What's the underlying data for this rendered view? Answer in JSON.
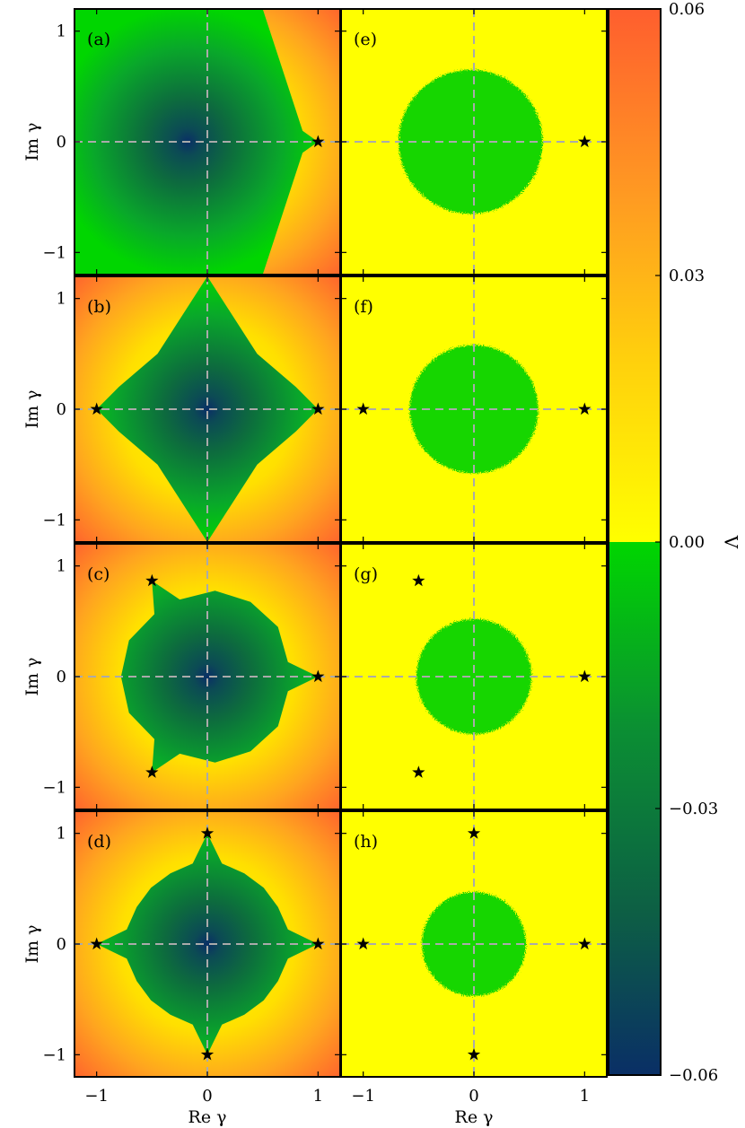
{
  "chart_data": {
    "type": "heatmap",
    "xlabel": "Re γ",
    "ylabel": "Im γ",
    "xlim": [
      -1.2,
      1.2
    ],
    "ylim": [
      -1.2,
      1.2
    ],
    "x_ticks": [
      -1,
      0,
      1
    ],
    "y_ticks": [
      -1,
      0,
      1
    ],
    "x_tick_labels": [
      "−1",
      "0",
      "1"
    ],
    "y_tick_labels": [
      "−1",
      "0",
      "1"
    ],
    "grid": false,
    "guide_lines": "dashed gray lines at Re γ = 0 and Im γ = 0",
    "colorbar": {
      "label": "Λ",
      "range": [
        -0.06,
        0.06
      ],
      "ticks": [
        0.06,
        0.03,
        0.0,
        -0.03,
        -0.06
      ],
      "tick_labels": [
        "0.06",
        "0.03",
        "0.00",
        "−0.03",
        "−0.06"
      ],
      "colormap": "positive: yellow to orange-red; negative: green to dark blue",
      "colors": {
        "zero_positive": "#ffff00",
        "mid_positive": "#ffa51f",
        "max_positive": "#ff5e2e",
        "zero_negative": "#00d600",
        "mid_negative": "#0d6e3c",
        "max_negative": "#0a2f66"
      }
    },
    "panels": [
      {
        "label": "(a)",
        "column": "left",
        "row": 1,
        "stars": [
          [
            1,
            0
          ]
        ]
      },
      {
        "label": "(b)",
        "column": "left",
        "row": 2,
        "stars": [
          [
            1,
            0
          ],
          [
            -1,
            0
          ]
        ]
      },
      {
        "label": "(c)",
        "column": "left",
        "row": 3,
        "stars": [
          [
            1,
            0
          ],
          [
            -0.5,
            0.866
          ],
          [
            -0.5,
            -0.866
          ]
        ]
      },
      {
        "label": "(d)",
        "column": "left",
        "row": 4,
        "stars": [
          [
            1,
            0
          ],
          [
            0,
            1
          ],
          [
            -1,
            0
          ],
          [
            0,
            -1
          ]
        ]
      },
      {
        "label": "(e)",
        "column": "right",
        "row": 1,
        "stars": [
          [
            1,
            0
          ]
        ],
        "disk_center": [
          -0.03,
          0
        ],
        "disk_radius": 0.65
      },
      {
        "label": "(f)",
        "column": "right",
        "row": 2,
        "stars": [
          [
            1,
            0
          ],
          [
            -1,
            0
          ]
        ],
        "disk_center": [
          0,
          0
        ],
        "disk_radius": 0.58
      },
      {
        "label": "(g)",
        "column": "right",
        "row": 3,
        "stars": [
          [
            1,
            0
          ],
          [
            -0.5,
            0.866
          ],
          [
            -0.5,
            -0.866
          ]
        ],
        "disk_center": [
          0,
          0
        ],
        "disk_radius": 0.52
      },
      {
        "label": "(h)",
        "column": "right",
        "row": 4,
        "stars": [
          [
            1,
            0
          ],
          [
            0,
            1
          ],
          [
            -1,
            0
          ],
          [
            0,
            -1
          ]
        ],
        "disk_center": [
          0,
          0
        ],
        "disk_radius": 0.47
      }
    ]
  }
}
